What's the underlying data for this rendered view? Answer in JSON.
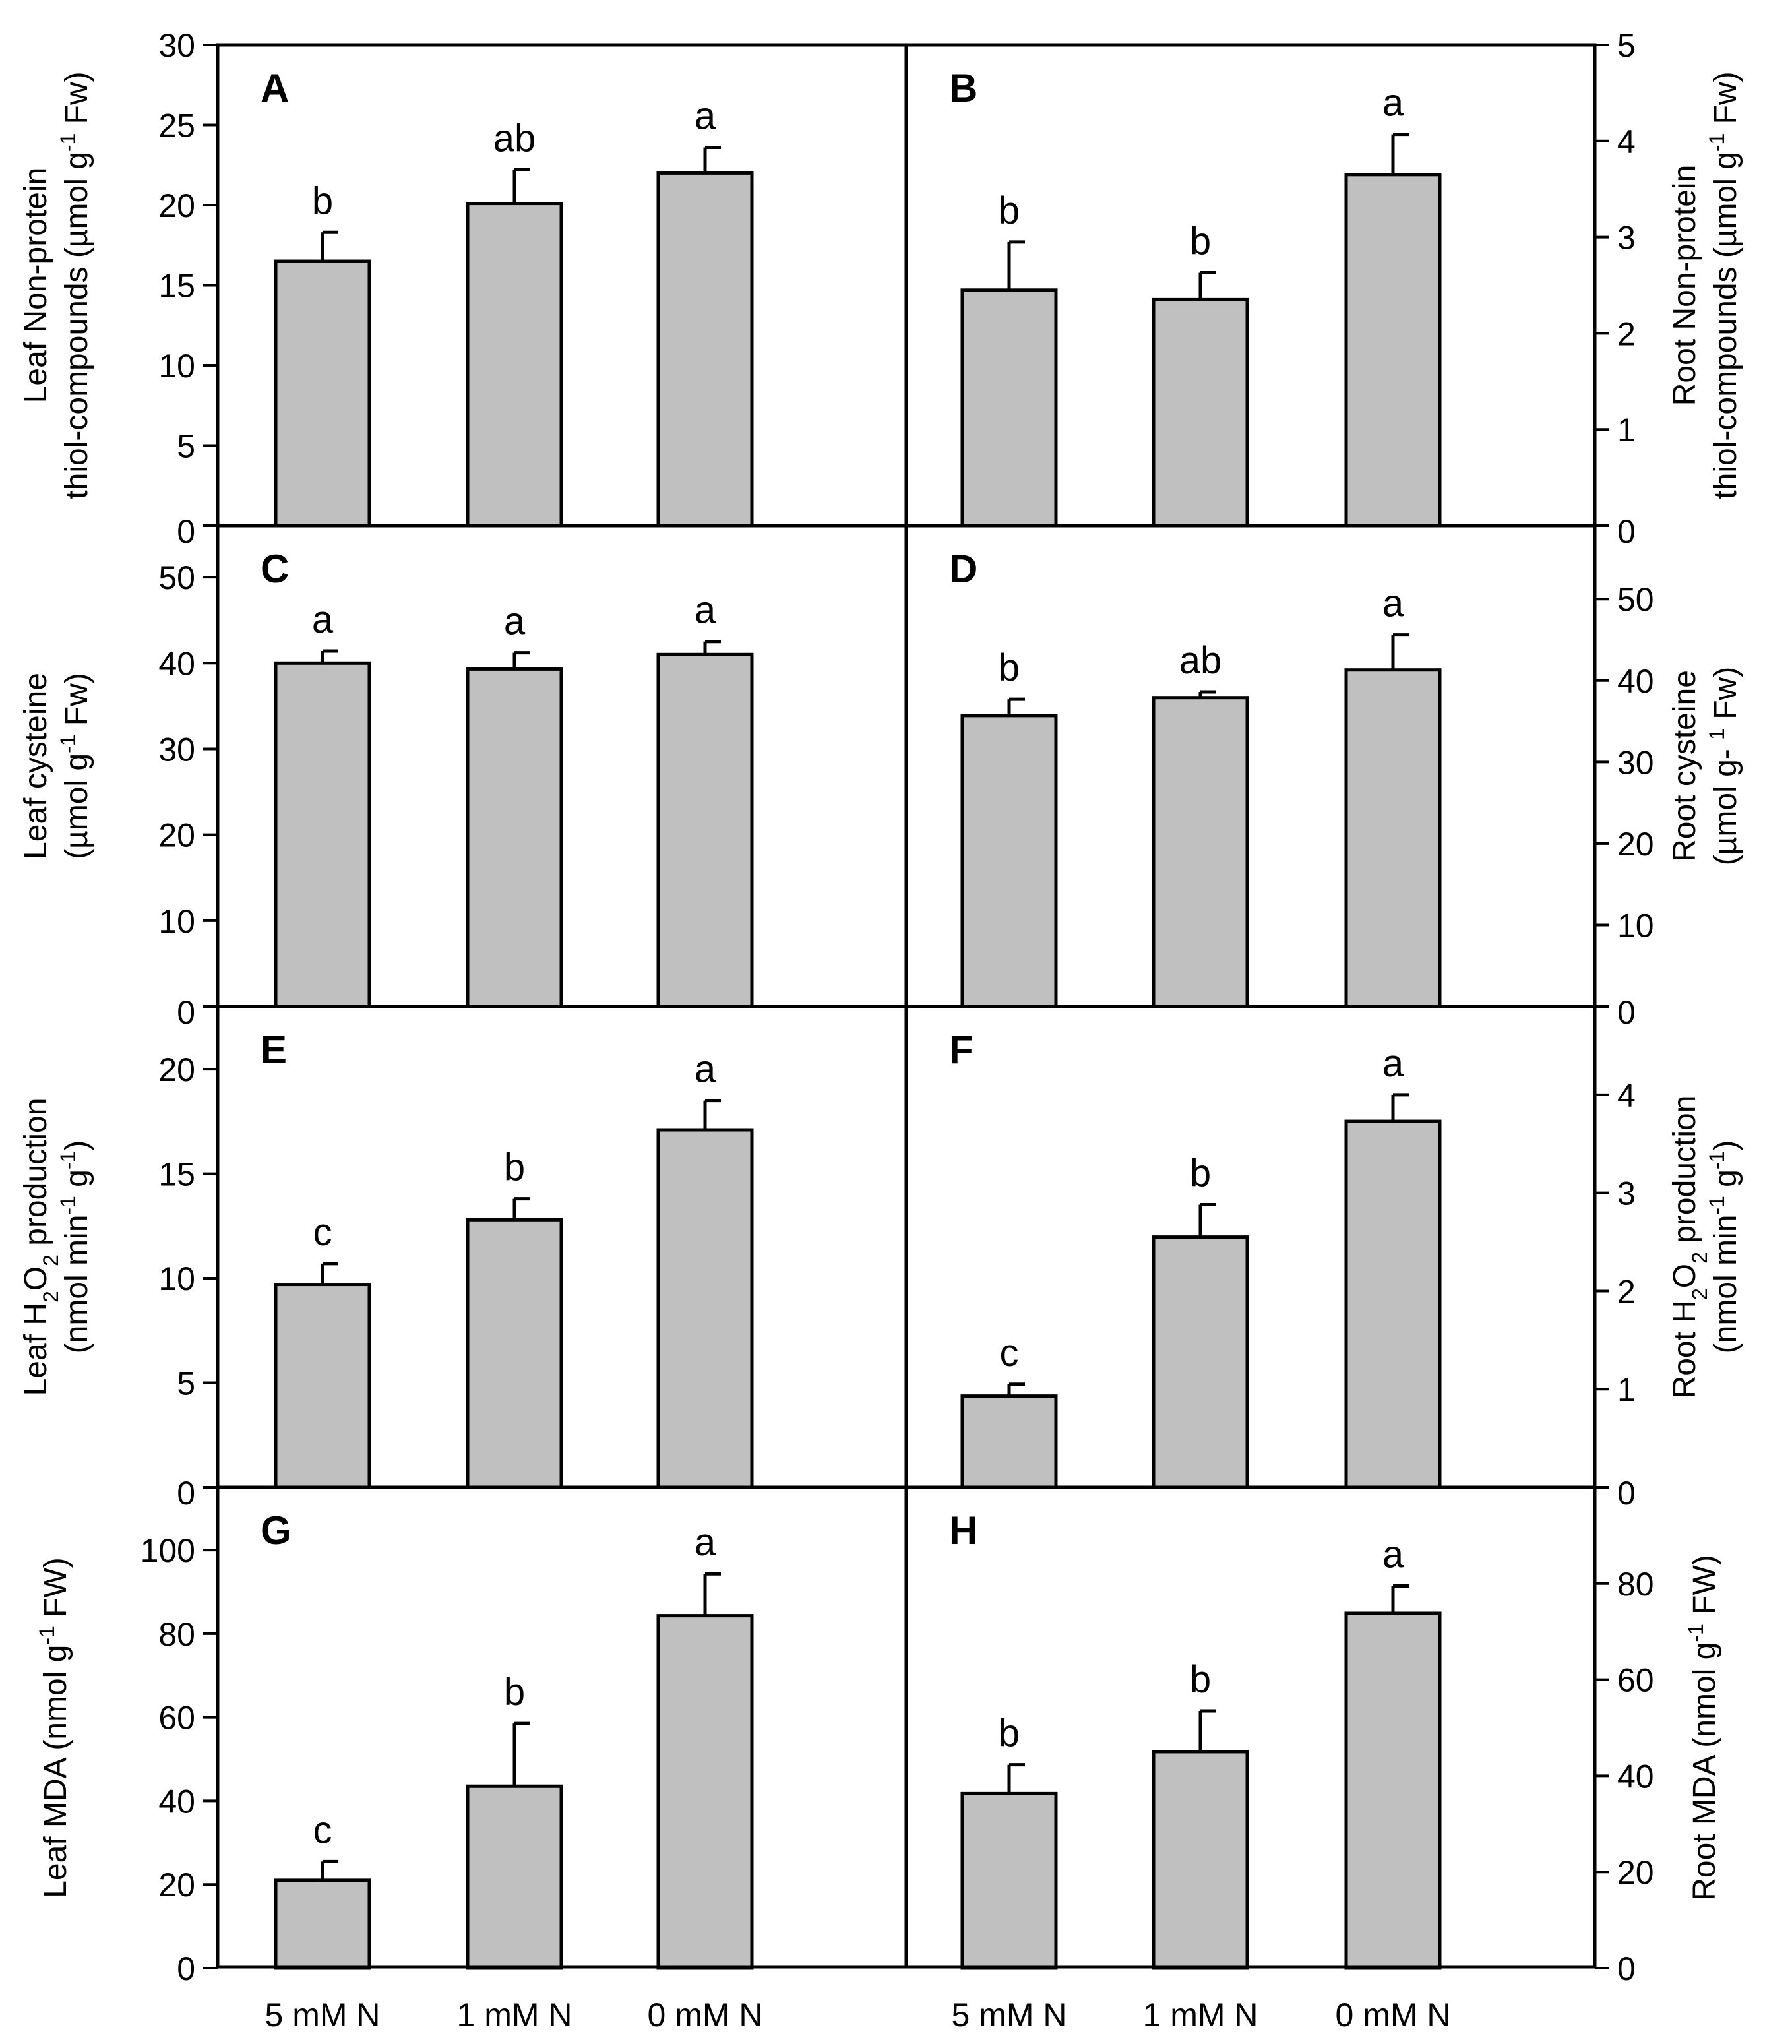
{
  "chart_data": [
    {
      "id": "A",
      "type": "bar",
      "panel_label": "A",
      "axis_side": "left",
      "ylabel_lines": [
        {
          "runs": [
            {
              "t": "Leaf Non-protein"
            }
          ]
        },
        {
          "runs": [
            {
              "t": "thiol-compounds  (µmol g"
            },
            {
              "t": "-1",
              "sup": true
            },
            {
              "t": " Fw)"
            }
          ]
        }
      ],
      "categories": [
        "5 mM N",
        "1 mM N",
        "0 mM N"
      ],
      "values": [
        16.5,
        20.1,
        22.0
      ],
      "errors": [
        1.8,
        2.1,
        1.6
      ],
      "sig_letters": [
        "b",
        "ab",
        "a"
      ],
      "ylim": [
        0,
        30
      ],
      "yticks": [
        0,
        5,
        10,
        15,
        20,
        25,
        30
      ]
    },
    {
      "id": "B",
      "type": "bar",
      "panel_label": "B",
      "axis_side": "right",
      "ylabel_lines": [
        {
          "runs": [
            {
              "t": "Root  Non-protein"
            }
          ]
        },
        {
          "runs": [
            {
              "t": "thiol-compounds  (µmol g"
            },
            {
              "t": "-1",
              "sup": true
            },
            {
              "t": " Fw)"
            }
          ]
        }
      ],
      "categories": [
        "5 mM N",
        "1 mM N",
        "0 mM N"
      ],
      "values": [
        2.45,
        2.35,
        3.65
      ],
      "errors": [
        0.5,
        0.28,
        0.42
      ],
      "sig_letters": [
        "b",
        "b",
        "a"
      ],
      "ylim": [
        0,
        5
      ],
      "yticks": [
        0,
        1,
        2,
        3,
        4,
        5
      ]
    },
    {
      "id": "C",
      "type": "bar",
      "panel_label": "C",
      "axis_side": "left",
      "ylabel_lines": [
        {
          "runs": [
            {
              "t": "Leaf cysteine"
            }
          ]
        },
        {
          "runs": [
            {
              "t": "(µmol g"
            },
            {
              "t": "-1",
              "sup": true
            },
            {
              "t": " Fw)"
            }
          ]
        }
      ],
      "categories": [
        "5 mM N",
        "1 mM N",
        "0 mM N"
      ],
      "values": [
        40.0,
        39.3,
        41.0
      ],
      "errors": [
        1.4,
        1.9,
        1.5
      ],
      "sig_letters": [
        "a",
        "a",
        "a"
      ],
      "ylim": [
        0,
        56
      ],
      "yticks": [
        0,
        10,
        20,
        30,
        40,
        50
      ]
    },
    {
      "id": "D",
      "type": "bar",
      "panel_label": "D",
      "axis_side": "right",
      "ylabel_lines": [
        {
          "runs": [
            {
              "t": "Root cysteine"
            }
          ]
        },
        {
          "runs": [
            {
              "t": "(µmol g- "
            },
            {
              "t": "1",
              "sup": true
            },
            {
              "t": " Fw)"
            }
          ]
        }
      ],
      "categories": [
        "5 mM N",
        "1 mM N",
        "0 mM N"
      ],
      "values": [
        35.7,
        37.9,
        41.3
      ],
      "errors": [
        2.0,
        0.7,
        4.3
      ],
      "sig_letters": [
        "b",
        "ab",
        "a"
      ],
      "ylim": [
        0,
        59
      ],
      "yticks": [
        0,
        10,
        20,
        30,
        40,
        50
      ]
    },
    {
      "id": "E",
      "type": "bar",
      "panel_label": "E",
      "axis_side": "left",
      "ylabel_lines": [
        {
          "runs": [
            {
              "t": "Leaf H"
            },
            {
              "t": "2",
              "sub": true
            },
            {
              "t": "O"
            },
            {
              "t": "2",
              "sub": true
            },
            {
              "t": " production"
            }
          ]
        },
        {
          "runs": [
            {
              "t": "(nmol min"
            },
            {
              "t": "-1",
              "sup": true
            },
            {
              "t": " g"
            },
            {
              "t": "-1",
              "sup": true
            },
            {
              "t": ")"
            }
          ]
        }
      ],
      "categories": [
        "5 mM N",
        "1 mM N",
        "0 mM N"
      ],
      "values": [
        9.7,
        12.8,
        17.1
      ],
      "errors": [
        1.0,
        1.0,
        1.4
      ],
      "sig_letters": [
        "c",
        "b",
        "a"
      ],
      "ylim": [
        0,
        23
      ],
      "yticks": [
        0,
        5,
        10,
        15,
        20
      ]
    },
    {
      "id": "F",
      "type": "bar",
      "panel_label": "F",
      "axis_side": "right",
      "ylabel_lines": [
        {
          "runs": [
            {
              "t": "Root H"
            },
            {
              "t": "2",
              "sub": true
            },
            {
              "t": "O"
            },
            {
              "t": "2",
              "sub": true
            },
            {
              "t": " production"
            }
          ]
        },
        {
          "runs": [
            {
              "t": "(nmol min"
            },
            {
              "t": "-1",
              "sup": true
            },
            {
              "t": " g"
            },
            {
              "t": "-1",
              "sup": true
            },
            {
              "t": ")"
            }
          ]
        }
      ],
      "categories": [
        "5 mM N",
        "1 mM N",
        "0 mM N"
      ],
      "values": [
        0.93,
        2.55,
        3.73
      ],
      "errors": [
        0.12,
        0.33,
        0.27
      ],
      "sig_letters": [
        "c",
        "b",
        "a"
      ],
      "ylim": [
        0,
        4.9
      ],
      "yticks": [
        0,
        1,
        2,
        3,
        4
      ]
    },
    {
      "id": "G",
      "type": "bar",
      "panel_label": "G",
      "axis_side": "left",
      "ylabel_lines": [
        {
          "runs": [
            {
              "t": "Leaf MDA (nmol g"
            },
            {
              "t": "-1",
              "sup": true
            },
            {
              "t": " FW)"
            }
          ]
        }
      ],
      "categories": [
        "5 mM N",
        "1 mM N",
        "0 mM N"
      ],
      "values": [
        21.0,
        43.5,
        84.3
      ],
      "errors": [
        4.5,
        15.0,
        10.0
      ],
      "sig_letters": [
        "c",
        "b",
        "a"
      ],
      "ylim": [
        0,
        115
      ],
      "yticks": [
        0,
        20,
        40,
        60,
        80,
        100
      ]
    },
    {
      "id": "H",
      "type": "bar",
      "panel_label": "H",
      "axis_side": "right",
      "ylabel_lines": [
        {
          "runs": [
            {
              "t": "Root MDA (nmol g"
            },
            {
              "t": "-1",
              "sup": true
            },
            {
              "t": " FW)"
            }
          ]
        }
      ],
      "categories": [
        "5 mM N",
        "1 mM N",
        "0 mM N"
      ],
      "values": [
        36.3,
        45.0,
        73.8
      ],
      "errors": [
        6.0,
        8.5,
        5.7
      ],
      "sig_letters": [
        "b",
        "b",
        "a"
      ],
      "ylim": [
        0,
        100
      ],
      "yticks": [
        0,
        20,
        40,
        60,
        80
      ]
    }
  ]
}
